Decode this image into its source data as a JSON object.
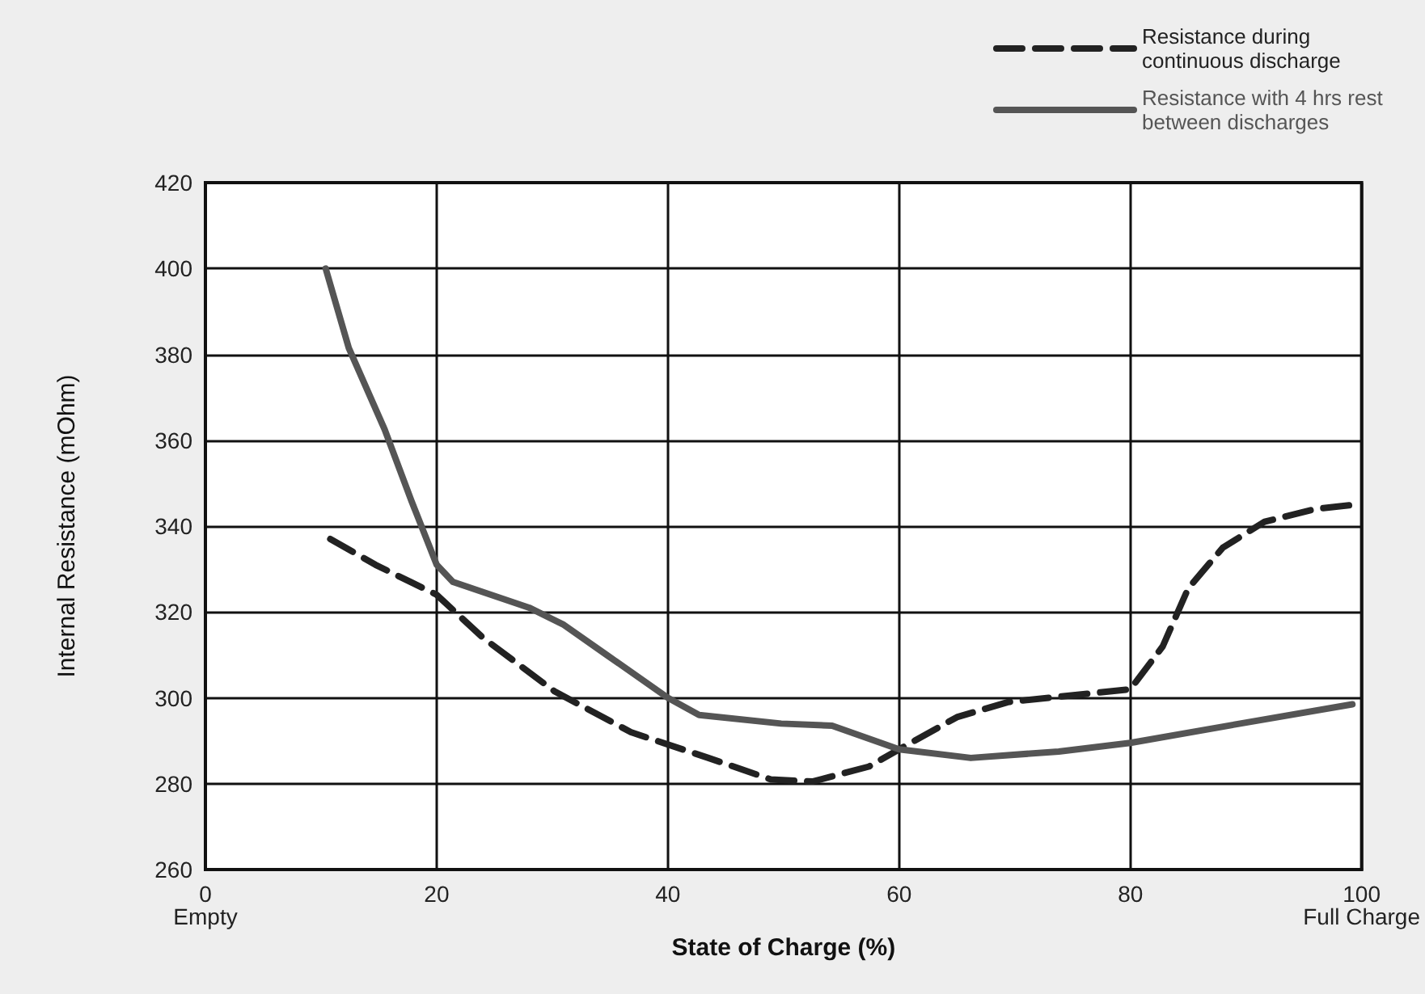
{
  "chart_data": {
    "type": "line",
    "xlabel": "State of Charge (%)",
    "ylabel": "Internal Resistance (mOhm)",
    "xlim": [
      0,
      100
    ],
    "xticks": [
      {
        "value": 0,
        "label": "0\nEmpty"
      },
      20,
      40,
      60,
      80,
      {
        "value": 100,
        "label": "100\nFull Charge"
      }
    ],
    "ylim": [
      260,
      420
    ],
    "yticks": [
      260,
      280,
      300,
      320,
      340,
      360,
      380,
      400,
      420
    ],
    "grid": true,
    "legend": "top right",
    "marker": "none",
    "series": [
      {
        "name": "Resistance during continuous discharge",
        "color": "#222222",
        "line_style": "dashed",
        "x": [
          10.8,
          14.7,
          20,
          24,
          30.2,
          36.8,
          43.5,
          48.9,
          52.5,
          57.4,
          60,
          65,
          69.4,
          80,
          82.8,
          85,
          88,
          91.6,
          96,
          99.5
        ],
        "values": [
          337,
          331,
          324,
          314,
          301.5,
          292,
          286,
          281,
          280.5,
          284,
          288,
          295.5,
          299,
          302,
          312,
          325.5,
          335,
          341,
          344,
          345
        ]
      },
      {
        "name": "Resistance with 4 hrs rest between discharges",
        "color": "#555555",
        "line_style": "solid",
        "x": [
          10.4,
          12.4,
          15.5,
          17.8,
          20,
          21.4,
          28,
          31,
          34.7,
          40,
          42.7,
          49.8,
          54.2,
          60,
          66.2,
          73.8,
          80,
          89.5,
          99.2
        ],
        "values": [
          400,
          381.5,
          362.5,
          346,
          331,
          327,
          321,
          317,
          310,
          300,
          296,
          294,
          293.5,
          288,
          286,
          287.5,
          289.5,
          294,
          298.5
        ]
      }
    ]
  }
}
